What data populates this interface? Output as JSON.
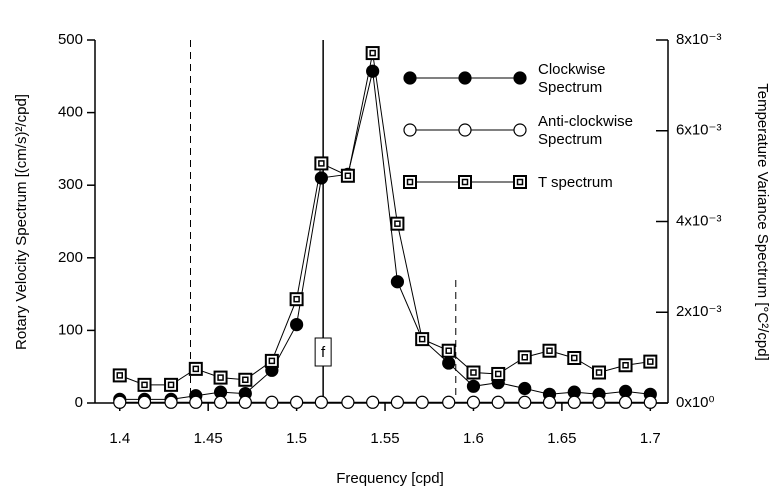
{
  "chart_data": {
    "type": "line",
    "x_label": "Frequency [cpd]",
    "y_label": "Rotary Velocity Spectrum [(cm/s)²/cpd]",
    "y2_label": "Temperature Variance Spectrum [°C²/cpd]",
    "x": [
      1.4,
      1.414,
      1.429,
      1.443,
      1.457,
      1.471,
      1.486,
      1.5,
      1.514,
      1.529,
      1.543,
      1.557,
      1.571,
      1.586,
      1.6,
      1.614,
      1.629,
      1.643,
      1.657,
      1.671,
      1.686,
      1.7
    ],
    "series": [
      {
        "name": "Clockwise Spectrum",
        "color": "#000",
        "marker": "filled-circle",
        "values": [
          5,
          5,
          5,
          10,
          15,
          13,
          45,
          108,
          310,
          315,
          457,
          167,
          88,
          55,
          23,
          28,
          20,
          12,
          15,
          12,
          16,
          12
        ]
      },
      {
        "name": "Anti-clockwise Spectrum",
        "color": "#000",
        "marker": "open-circle",
        "values": [
          1,
          1,
          1,
          1,
          1,
          1,
          1,
          1,
          1,
          1,
          1,
          1,
          1,
          1,
          1,
          1,
          1,
          1,
          1,
          1,
          1,
          1
        ]
      },
      {
        "name": "T spectrum",
        "color": "#000",
        "marker": "square",
        "axis": "y2",
        "values": [
          0.000608,
          0.0004,
          0.0004,
          0.000752,
          0.00056,
          0.000512,
          0.000928,
          0.002288,
          0.00528,
          0.005008,
          0.007712,
          0.003952,
          0.001408,
          0.001152,
          0.000672,
          0.00064,
          0.001008,
          0.001152,
          0.000992,
          0.000672,
          0.000832,
          0.000912
        ]
      }
    ],
    "xlim": [
      1.386,
      1.71
    ],
    "xticks": [
      1.4,
      1.45,
      1.5,
      1.55,
      1.6,
      1.65,
      1.7
    ],
    "ylim": [
      0,
      500
    ],
    "yticks": [
      0,
      100,
      200,
      300,
      400,
      500
    ],
    "y2lim": [
      0,
      0.008
    ],
    "y2ticks": [
      {
        "value": 0,
        "label": "0x10⁰"
      },
      {
        "value": 0.002,
        "label": "2x10⁻³"
      },
      {
        "value": 0.004,
        "label": "4x10⁻³"
      },
      {
        "value": 0.006,
        "label": "6x10⁻³"
      },
      {
        "value": 0.008,
        "label": "8x10⁻³"
      }
    ],
    "dashed_lines": [
      1.44,
      1.59
    ],
    "annotations": [
      {
        "x": 1.515,
        "label": "f"
      }
    ],
    "legend": "upper right"
  }
}
